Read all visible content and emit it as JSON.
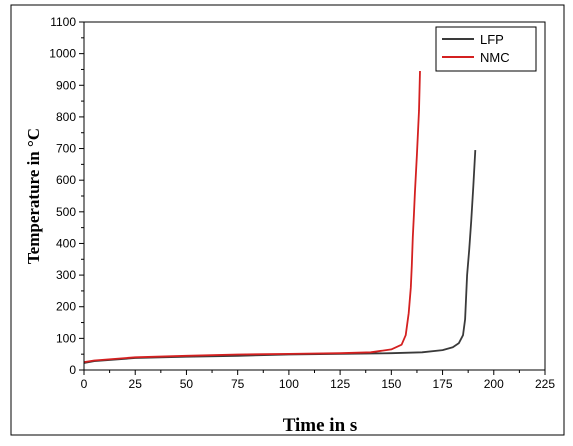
{
  "chart_data": {
    "type": "line",
    "title": "",
    "xlabel": "Time in s",
    "ylabel": "Temperature in °C",
    "xlim": [
      0,
      225
    ],
    "ylim": [
      0,
      1100
    ],
    "x_ticks": [
      0,
      25,
      50,
      75,
      100,
      125,
      150,
      175,
      200,
      225
    ],
    "y_ticks": [
      0,
      100,
      200,
      300,
      400,
      500,
      600,
      700,
      800,
      900,
      1000,
      1100
    ],
    "grid": false,
    "legend_position": "top-right",
    "series": [
      {
        "name": "LFP",
        "color": "#3a3a3a",
        "points": [
          [
            0,
            22
          ],
          [
            5,
            28
          ],
          [
            25,
            38
          ],
          [
            50,
            42
          ],
          [
            75,
            45
          ],
          [
            100,
            49
          ],
          [
            125,
            51
          ],
          [
            150,
            53
          ],
          [
            165,
            56
          ],
          [
            175,
            63
          ],
          [
            180,
            72
          ],
          [
            183,
            85
          ],
          [
            185,
            110
          ],
          [
            186,
            160
          ],
          [
            186.5,
            230
          ],
          [
            187,
            300
          ],
          [
            188,
            380
          ],
          [
            189,
            470
          ],
          [
            190,
            580
          ],
          [
            191,
            695
          ]
        ]
      },
      {
        "name": "NMC",
        "color": "#d42020",
        "points": [
          [
            0,
            25
          ],
          [
            5,
            30
          ],
          [
            25,
            40
          ],
          [
            50,
            45
          ],
          [
            75,
            49
          ],
          [
            100,
            51
          ],
          [
            125,
            53
          ],
          [
            140,
            56
          ],
          [
            150,
            65
          ],
          [
            155,
            80
          ],
          [
            157,
            110
          ],
          [
            158.5,
            180
          ],
          [
            159.5,
            260
          ],
          [
            160,
            330
          ],
          [
            160.5,
            420
          ],
          [
            161,
            490
          ],
          [
            161.5,
            560
          ],
          [
            162.5,
            680
          ],
          [
            163.5,
            820
          ],
          [
            164,
            945
          ]
        ]
      }
    ]
  }
}
